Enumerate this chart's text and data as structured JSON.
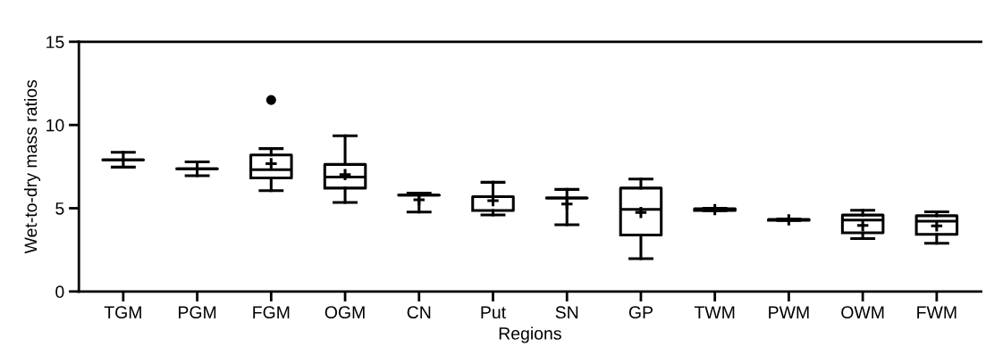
{
  "chart_data": {
    "type": "box",
    "xlabel": "Regions",
    "ylabel": "Wet-to-dry mass ratios",
    "categories": [
      "TGM",
      "PGM",
      "FGM",
      "OGM",
      "CN",
      "Put",
      "SN",
      "GP",
      "TWM",
      "PWM",
      "OWM",
      "FWM"
    ],
    "boxes": [
      {
        "low": 7.47,
        "q1": 7.91,
        "median": 7.91,
        "q3": 7.91,
        "high": 8.36
      },
      {
        "low": 6.95,
        "q1": 7.37,
        "median": 7.37,
        "q3": 7.37,
        "high": 7.78
      },
      {
        "low": 6.06,
        "q1": 6.82,
        "median": 7.32,
        "q3": 8.2,
        "high": 8.58,
        "mean": 7.68,
        "outliers": [
          11.5
        ]
      },
      {
        "low": 5.35,
        "q1": 6.21,
        "median": 6.87,
        "q3": 7.63,
        "high": 9.35,
        "mean": 7.02
      },
      {
        "low": 4.77,
        "q1": 5.79,
        "median": 5.79,
        "q3": 5.79,
        "high": 5.91,
        "mean": 5.51
      },
      {
        "low": 4.6,
        "q1": 4.87,
        "median": 5.7,
        "q3": 5.7,
        "high": 6.56,
        "mean": 5.45
      },
      {
        "low": 4.01,
        "q1": 5.61,
        "median": 5.61,
        "q3": 5.61,
        "high": 6.13,
        "mean": 5.25
      },
      {
        "low": 1.97,
        "q1": 3.39,
        "median": 4.93,
        "q3": 6.21,
        "high": 6.75,
        "mean": 4.75
      },
      {
        "low": 4.85,
        "q1": 4.87,
        "median": 4.92,
        "q3": 4.97,
        "high": 5.0,
        "mean": 4.92
      },
      {
        "low": 4.26,
        "q1": 4.28,
        "median": 4.3,
        "q3": 4.33,
        "high": 4.35,
        "mean": 4.3
      },
      {
        "low": 3.18,
        "q1": 3.53,
        "median": 4.29,
        "q3": 4.59,
        "high": 4.88,
        "mean": 3.97
      },
      {
        "low": 2.9,
        "q1": 3.43,
        "median": 4.22,
        "q3": 4.55,
        "high": 4.78,
        "mean": 3.94
      }
    ],
    "ylim": [
      0,
      15
    ],
    "yticks": [
      0,
      5,
      10,
      15
    ],
    "grid": false
  }
}
